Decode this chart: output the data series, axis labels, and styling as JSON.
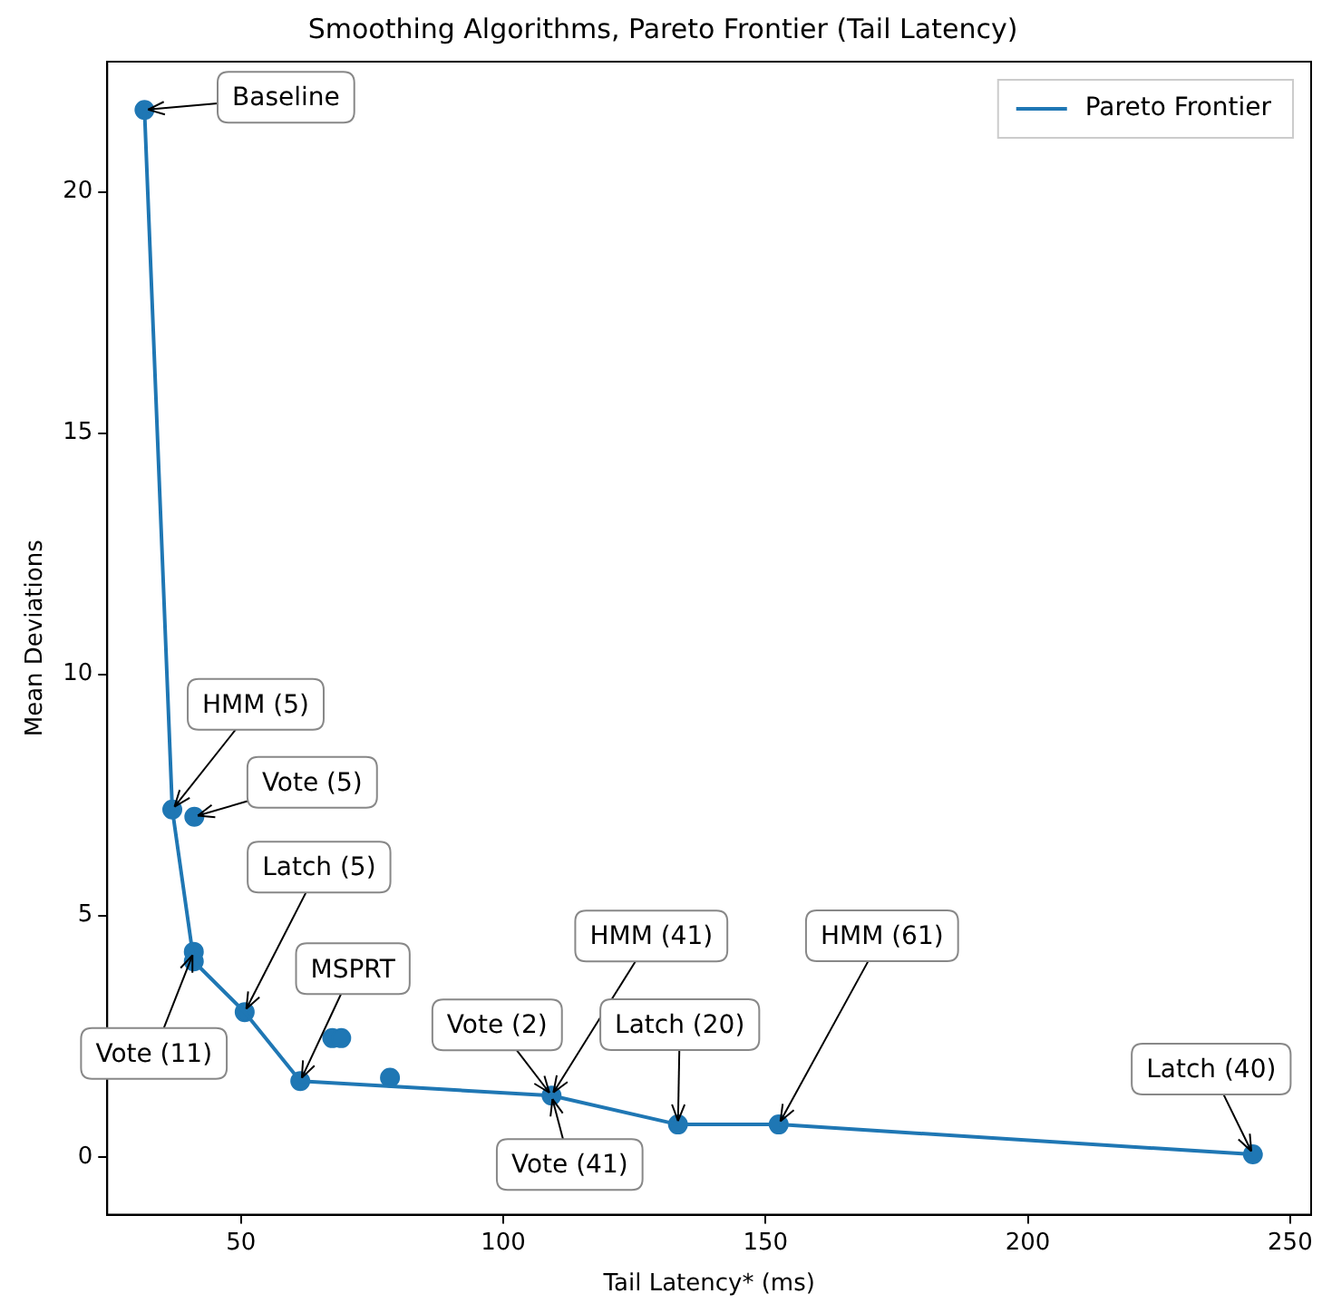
{
  "chart_data": {
    "type": "scatter",
    "title": "Smoothing Algorithms, Pareto Frontier (Tail Latency)",
    "xlabel": "Tail Latency* (ms)",
    "ylabel": "Mean Deviations",
    "xlim": [
      24.5,
      254
    ],
    "xticks": [
      50,
      100,
      150,
      200,
      250
    ],
    "ylim": [
      -1.2,
      22.7
    ],
    "yticks": [
      0,
      5,
      10,
      15,
      20
    ],
    "grid": false,
    "legend": "top right",
    "series": [
      {
        "name": "Pareto Frontier",
        "type": "line",
        "color": "#1f77b4",
        "marker": "none",
        "line_style": "solid",
        "x": [
          31.6,
          36.9,
          41,
          50.7,
          61.3,
          109.2,
          133.3,
          152.5,
          242.9
        ],
        "values": [
          21.7,
          7.2,
          4.05,
          3.0,
          1.57,
          1.27,
          0.67,
          0.67,
          0.05
        ]
      },
      {
        "type": "scatter",
        "color": "#1f77b4",
        "marker": "circle",
        "x": [
          31.6,
          36.9,
          41.1,
          41,
          41,
          50.7,
          61.3,
          67.4,
          69.1,
          78.4,
          109.2,
          133.3,
          152.5,
          242.9
        ],
        "values": [
          21.7,
          7.2,
          7.05,
          4.25,
          4.05,
          3.0,
          1.57,
          2.46,
          2.46,
          1.64,
          1.27,
          0.67,
          0.67,
          0.05
        ]
      }
    ],
    "annotations": [
      {
        "text": "Baseline",
        "x": 31.6,
        "y": 21.7
      },
      {
        "text": "HMM (5)",
        "x": 36.9,
        "y": 7.2
      },
      {
        "text": "Vote (5)",
        "x": 41.1,
        "y": 7.05
      },
      {
        "text": "Latch (5)",
        "x": 50.7,
        "y": 3.0
      },
      {
        "text": "Vote (11)",
        "x": 41,
        "y": 4.25
      },
      {
        "text": "MSPRT",
        "x": 61.3,
        "y": 1.57
      },
      {
        "text": "Vote (2)",
        "x": 109.2,
        "y": 1.27
      },
      {
        "text": "HMM (41)",
        "x": 109.2,
        "y": 1.27
      },
      {
        "text": "Vote (41)",
        "x": 109.2,
        "y": 1.27
      },
      {
        "text": "Latch (20)",
        "x": 133.3,
        "y": 0.67
      },
      {
        "text": "HMM (61)",
        "x": 152.5,
        "y": 0.67
      },
      {
        "text": "Latch (40)",
        "x": 242.9,
        "y": 0.05
      }
    ]
  }
}
